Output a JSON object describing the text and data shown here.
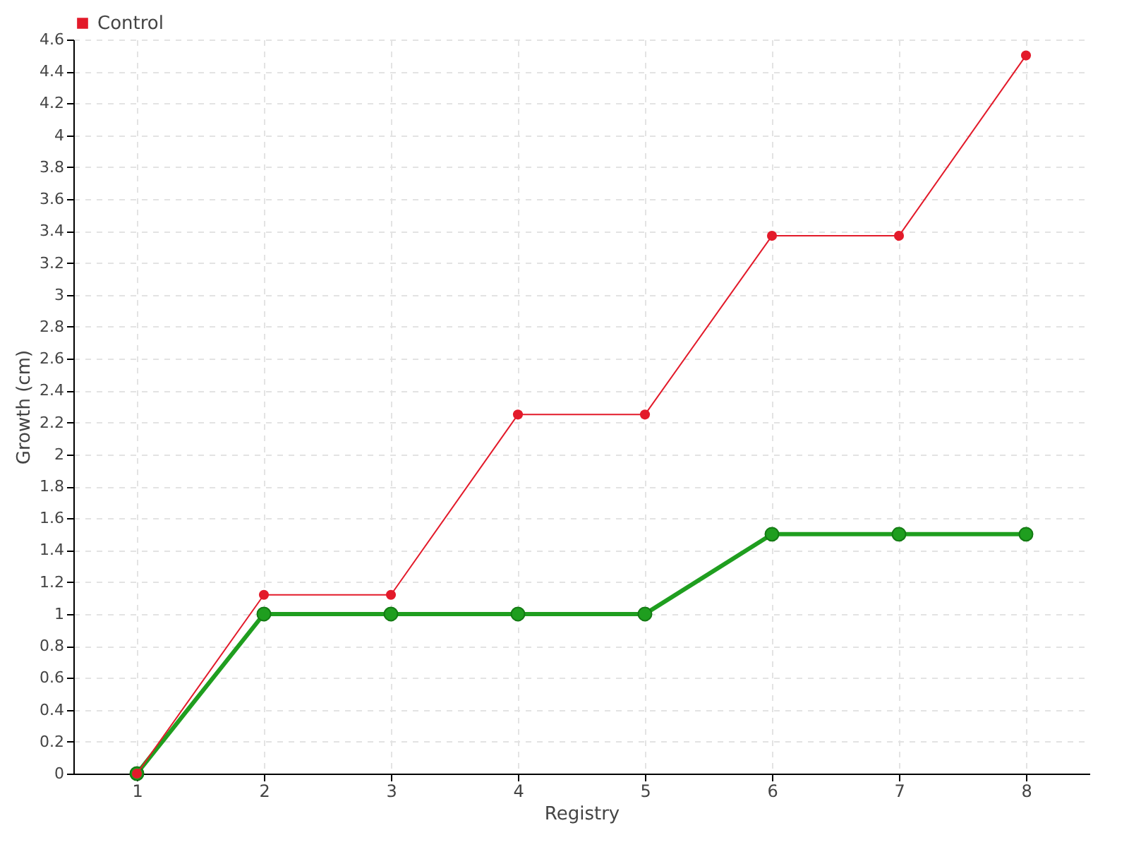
{
  "chart_data": {
    "type": "line",
    "xlabel": "Registry",
    "ylabel": "Growth (cm)",
    "categories": [
      "1",
      "2",
      "3",
      "4",
      "5",
      "6",
      "7",
      "8"
    ],
    "series": [
      {
        "color": "#1f9e1f",
        "values": [
          0,
          1,
          1,
          1,
          1,
          1.5,
          1.5,
          1.5
        ]
      },
      {
        "name": "Control",
        "color": "#e31a2a",
        "values": [
          0,
          1.12,
          1.12,
          2.25,
          2.25,
          3.37,
          3.37,
          4.5
        ]
      }
    ],
    "ylim": [
      0,
      4.6
    ],
    "yticks": [
      0,
      0.2,
      0.4,
      0.6,
      0.8,
      1,
      1.2,
      1.4,
      1.6,
      1.8,
      2,
      2.2,
      2.4,
      2.6,
      2.8,
      3,
      3.2,
      3.4,
      3.6,
      3.8,
      4,
      4.2,
      4.4,
      4.6
    ],
    "grid": true,
    "legend": "top left",
    "marker": "circle"
  }
}
